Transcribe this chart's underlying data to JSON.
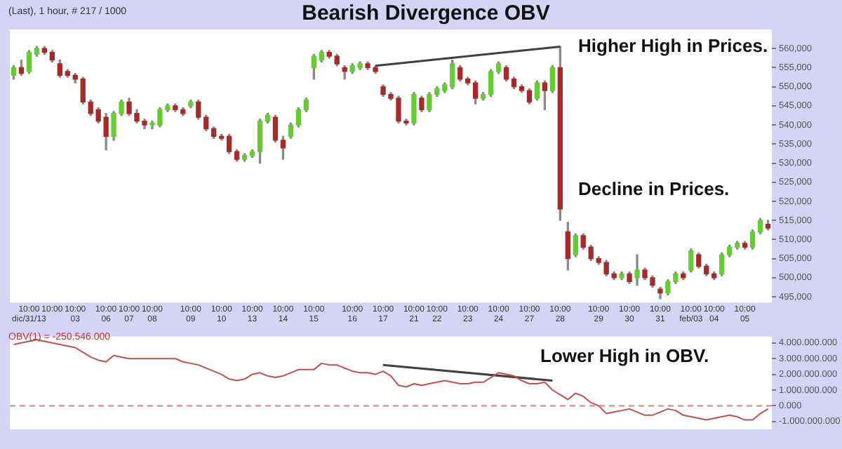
{
  "chart_data": [
    {
      "type": "candlestick",
      "title": "Bearish Divergence OBV",
      "annotations": [
        "(Last), 1 hour, # 217 / 1000",
        "Higher High in Prices.",
        "Decline in Prices."
      ],
      "categories": [
        null,
        null,
        "10:00\ndic/31/13",
        null,
        null,
        "10:00",
        null,
        null,
        "10:00\n03",
        null,
        null,
        null,
        "10:00\n06",
        null,
        null,
        "10:00\n07",
        null,
        null,
        "10:00\n08",
        null,
        null,
        null,
        null,
        "10:00\n09",
        null,
        null,
        null,
        "10:00\n10",
        null,
        null,
        null,
        "10:00\n13",
        null,
        null,
        null,
        "10:00\n14",
        null,
        null,
        null,
        "10:00\n15",
        null,
        null,
        null,
        null,
        "10:00\n16",
        null,
        null,
        null,
        "10:00\n17",
        null,
        null,
        null,
        "10:00\n21",
        null,
        null,
        "10:00\n22",
        null,
        null,
        null,
        "10:00\n23",
        null,
        null,
        null,
        "10:00\n24",
        null,
        null,
        null,
        "10:00\n27",
        null,
        null,
        null,
        "10:00\n28",
        null,
        null,
        null,
        null,
        "10:00\n29",
        null,
        null,
        null,
        "10:00\n30",
        null,
        null,
        null,
        "10:00\n31",
        null,
        null,
        null,
        "10:00\nfeb/03",
        null,
        null,
        "10:00\n04",
        null,
        null,
        null,
        "10:00\n05",
        null,
        null,
        null
      ],
      "ohlc": [
        [
          553000,
          555500,
          552000,
          555000
        ],
        [
          555000,
          557000,
          553000,
          553500
        ],
        [
          554000,
          559500,
          553500,
          559000
        ],
        [
          558500,
          560500,
          558000,
          560000
        ],
        [
          560000,
          560500,
          558500,
          559000
        ],
        [
          559000,
          559500,
          556500,
          557000
        ],
        [
          556000,
          557000,
          552500,
          553000
        ],
        [
          554000,
          554500,
          552500,
          553000
        ],
        [
          553000,
          553500,
          551000,
          552000
        ],
        [
          552000,
          552500,
          545500,
          546000
        ],
        [
          546000,
          546500,
          542500,
          543000
        ],
        [
          544000,
          544500,
          540500,
          541000
        ],
        [
          542000,
          543000,
          533500,
          537000
        ],
        [
          537000,
          543500,
          536000,
          543000
        ],
        [
          543000,
          546500,
          542500,
          546000
        ],
        [
          546000,
          547000,
          542500,
          543000
        ],
        [
          543000,
          544000,
          540500,
          541000
        ],
        [
          541000,
          541500,
          539000,
          540000
        ],
        [
          540000,
          541000,
          539000,
          540500
        ],
        [
          540000,
          544500,
          539500,
          544000
        ],
        [
          544000,
          545500,
          543500,
          545000
        ],
        [
          545000,
          545500,
          543500,
          544000
        ],
        [
          544000,
          544500,
          542500,
          543000
        ],
        [
          545000,
          546500,
          544500,
          546000
        ],
        [
          546000,
          546500,
          541500,
          542000
        ],
        [
          542000,
          542500,
          538500,
          539000
        ],
        [
          539000,
          539500,
          536500,
          537000
        ],
        [
          537000,
          537500,
          536000,
          536500
        ],
        [
          537000,
          537500,
          532500,
          533000
        ],
        [
          533000,
          533500,
          530500,
          531000
        ],
        [
          531000,
          532500,
          530500,
          532000
        ],
        [
          532000,
          533500,
          531500,
          533000
        ],
        [
          533000,
          541500,
          530000,
          541000
        ],
        [
          541000,
          543000,
          540500,
          542500
        ],
        [
          542000,
          542500,
          535500,
          536000
        ],
        [
          536000,
          537000,
          531000,
          534000
        ],
        [
          537000,
          540500,
          536500,
          540000
        ],
        [
          540000,
          544500,
          539500,
          544000
        ],
        [
          544000,
          547000,
          543500,
          546500
        ],
        [
          555000,
          558500,
          552000,
          558000
        ],
        [
          557000,
          559500,
          556500,
          559000
        ],
        [
          559000,
          559500,
          557500,
          558000
        ],
        [
          558000,
          558500,
          555500,
          556000
        ],
        [
          555000,
          555500,
          552000,
          554000
        ],
        [
          554000,
          556000,
          553500,
          555500
        ],
        [
          555000,
          556500,
          554500,
          556000
        ],
        [
          556000,
          556500,
          554500,
          555000
        ],
        [
          555000,
          555500,
          553500,
          554000
        ],
        [
          550000,
          550500,
          547500,
          548000
        ],
        [
          548000,
          548500,
          546500,
          547000
        ],
        [
          547000,
          547500,
          540500,
          541000
        ],
        [
          541000,
          541500,
          540000,
          540500
        ],
        [
          540500,
          548500,
          540000,
          548000
        ],
        [
          547000,
          547500,
          543500,
          544000
        ],
        [
          544000,
          548500,
          543500,
          548000
        ],
        [
          548000,
          550000,
          547500,
          549500
        ],
        [
          549000,
          551000,
          548500,
          550500
        ],
        [
          550000,
          557000,
          549500,
          556000
        ],
        [
          555000,
          555500,
          551500,
          552000
        ],
        [
          552000,
          552500,
          550500,
          551000
        ],
        [
          551000,
          551500,
          545500,
          547000
        ],
        [
          547000,
          548500,
          546500,
          548000
        ],
        [
          548000,
          554500,
          547500,
          554000
        ],
        [
          554000,
          556500,
          553500,
          556000
        ],
        [
          555000,
          555500,
          551500,
          552000
        ],
        [
          552000,
          552500,
          549500,
          550000
        ],
        [
          550000,
          550500,
          548500,
          549000
        ],
        [
          549000,
          549500,
          545500,
          546000
        ],
        [
          547000,
          551500,
          546500,
          551000
        ],
        [
          551000,
          551500,
          544000,
          549000
        ],
        [
          549000,
          555500,
          548500,
          555000
        ],
        [
          555000,
          560500,
          515000,
          518000
        ],
        [
          512000,
          514500,
          502000,
          505000
        ],
        [
          506000,
          511500,
          505500,
          511000
        ],
        [
          511000,
          511500,
          507500,
          508000
        ],
        [
          508000,
          508500,
          504500,
          505000
        ],
        [
          505000,
          505500,
          503500,
          504000
        ],
        [
          504000,
          504500,
          500500,
          501000
        ],
        [
          501000,
          501500,
          499500,
          500000
        ],
        [
          500000,
          501500,
          499500,
          501000
        ],
        [
          501000,
          501500,
          498500,
          499000
        ],
        [
          500000,
          506000,
          498000,
          502000
        ],
        [
          502000,
          502500,
          499500,
          500000
        ],
        [
          500000,
          500500,
          497500,
          498000
        ],
        [
          497000,
          497500,
          494500,
          496000
        ],
        [
          496000,
          499500,
          495500,
          499000
        ],
        [
          499000,
          501500,
          498500,
          501000
        ],
        [
          501000,
          501500,
          499500,
          500000
        ],
        [
          502000,
          507500,
          501500,
          507000
        ],
        [
          506000,
          506500,
          502500,
          503000
        ],
        [
          503000,
          503500,
          500500,
          501000
        ],
        [
          501000,
          501500,
          499500,
          500000
        ],
        [
          501000,
          506500,
          500500,
          506000
        ],
        [
          506000,
          508500,
          505500,
          508000
        ],
        [
          508000,
          509500,
          507500,
          509000
        ],
        [
          509000,
          509500,
          507500,
          508000
        ],
        [
          508000,
          512500,
          507500,
          512000
        ],
        [
          512000,
          515500,
          511500,
          515000
        ],
        [
          514000,
          515000,
          512500,
          513000
        ]
      ],
      "colors": [
        "#66cc33",
        "#a52a2a",
        "#66cc33",
        "#66cc33",
        "#a52a2a",
        "#a52a2a",
        "#a52a2a",
        "#a52a2a",
        "#a52a2a",
        "#a52a2a",
        "#a52a2a",
        "#a52a2a",
        "#a52a2a",
        "#66cc33",
        "#66cc33",
        "#a52a2a",
        "#a52a2a",
        "#a52a2a",
        "#66cc33",
        "#66cc33",
        "#66cc33",
        "#a52a2a",
        "#a52a2a",
        "#66cc33",
        "#a52a2a",
        "#a52a2a",
        "#a52a2a",
        "#a52a2a",
        "#a52a2a",
        "#a52a2a",
        "#66cc33",
        "#66cc33",
        "#66cc33",
        "#66cc33",
        "#a52a2a",
        "#a52a2a",
        "#66cc33",
        "#66cc33",
        "#66cc33",
        "#66cc33",
        "#66cc33",
        "#a52a2a",
        "#a52a2a",
        "#a52a2a",
        "#66cc33",
        "#66cc33",
        "#a52a2a",
        "#a52a2a",
        "#a52a2a",
        "#a52a2a",
        "#a52a2a",
        "#a52a2a",
        "#66cc33",
        "#a52a2a",
        "#66cc33",
        "#66cc33",
        "#66cc33",
        "#66cc33",
        "#a52a2a",
        "#a52a2a",
        "#a52a2a",
        "#66cc33",
        "#66cc33",
        "#66cc33",
        "#a52a2a",
        "#a52a2a",
        "#a52a2a",
        "#a52a2a",
        "#66cc33",
        "#a52a2a",
        "#66cc33",
        "#a52a2a",
        "#a52a2a",
        "#66cc33",
        "#a52a2a",
        "#a52a2a",
        "#a52a2a",
        "#a52a2a",
        "#a52a2a",
        "#66cc33",
        "#a52a2a",
        "#66cc33",
        "#a52a2a",
        "#a52a2a",
        "#a52a2a",
        "#66cc33",
        "#66cc33",
        "#a52a2a",
        "#66cc33",
        "#a52a2a",
        "#a52a2a",
        "#a52a2a",
        "#66cc33",
        "#66cc33",
        "#66cc33",
        "#a52a2a",
        "#66cc33",
        "#66cc33",
        "#a52a2a"
      ],
      "series": [
        {
          "type": "line",
          "color": "#404040",
          "values": [
            null,
            null,
            null,
            null,
            null,
            null,
            null,
            null,
            null,
            null,
            null,
            null,
            null,
            null,
            null,
            null,
            null,
            null,
            null,
            null,
            null,
            null,
            null,
            null,
            null,
            null,
            null,
            null,
            null,
            null,
            null,
            null,
            null,
            null,
            null,
            null,
            null,
            null,
            null,
            null,
            null,
            null,
            null,
            null,
            null,
            null,
            null,
            555500,
            null,
            null,
            null,
            null,
            null,
            null,
            null,
            null,
            null,
            null,
            null,
            null,
            null,
            null,
            null,
            null,
            null,
            null,
            null,
            null,
            null,
            null,
            null,
            560500,
            null,
            null,
            null,
            null,
            null,
            null,
            null,
            null,
            null,
            null,
            null,
            null,
            null,
            null,
            null,
            null,
            null,
            null,
            null,
            null,
            null,
            null,
            null,
            null,
            null,
            null,
            null
          ]
        }
      ],
      "ylim": [
        493500,
        565000
      ],
      "yticks": [
        {
          "value": 495000,
          "label": "495,000"
        },
        {
          "value": 500000,
          "label": "500,000"
        },
        {
          "value": 505000,
          "label": "505,000"
        },
        {
          "value": 510000,
          "label": "510,000"
        },
        {
          "value": 515000,
          "label": "515,000"
        },
        {
          "value": 520000,
          "label": "520,000"
        },
        {
          "value": 525000,
          "label": "525,000"
        },
        {
          "value": 530000,
          "label": "530,000"
        },
        {
          "value": 535000,
          "label": "535,000"
        },
        {
          "value": 540000,
          "label": "540,000"
        },
        {
          "value": 545000,
          "label": "545,000"
        },
        {
          "value": 550000,
          "label": "550,000"
        },
        {
          "value": 555000,
          "label": "555,000"
        },
        {
          "value": 560000,
          "label": "560,000"
        }
      ]
    },
    {
      "type": "line",
      "tick_labels": "y",
      "annotations": [
        "OBV(1) = -250.546.000",
        "Lower High in OBV."
      ],
      "series": [
        {
          "color": "#c0504d",
          "values": [
            3900000000,
            4000000000,
            4100000000,
            4200000000,
            4100000000,
            4000000000,
            3900000000,
            3800000000,
            3700000000,
            3400000000,
            3100000000,
            2900000000,
            2800000000,
            3200000000,
            3100000000,
            3000000000,
            3000000000,
            3000000000,
            3000000000,
            3000000000,
            3000000000,
            3000000000,
            2800000000,
            2700000000,
            2600000000,
            2400000000,
            2200000000,
            2000000000,
            1700000000,
            1600000000,
            1700000000,
            2000000000,
            2100000000,
            1900000000,
            1800000000,
            1900000000,
            2100000000,
            2300000000,
            2300000000,
            2300000000,
            2700000000,
            2600000000,
            2600000000,
            2400000000,
            2200000000,
            2100000000,
            2100000000,
            2000000000,
            2200000000,
            1900000000,
            1300000000,
            1200000000,
            1400000000,
            1300000000,
            1400000000,
            1500000000,
            1600000000,
            1500000000,
            1400000000,
            1400000000,
            1500000000,
            1500000000,
            1800000000,
            2100000000,
            2000000000,
            1900000000,
            1600000000,
            1400000000,
            1400000000,
            1500000000,
            1000000000,
            700000000,
            400000000,
            800000000,
            600000000,
            200000000,
            0,
            -500000000,
            -400000000,
            -300000000,
            -200000000,
            -400000000,
            -600000000,
            -600000000,
            -400000000,
            -200000000,
            -300000000,
            -600000000,
            -700000000,
            -800000000,
            -900000000,
            -800000000,
            -700000000,
            -600000000,
            -700000000,
            -900000000,
            -900000000,
            -500000000,
            -200000000
          ]
        },
        {
          "color": "#404040",
          "values": [
            null,
            null,
            null,
            null,
            null,
            null,
            null,
            null,
            null,
            null,
            null,
            null,
            null,
            null,
            null,
            null,
            null,
            null,
            null,
            null,
            null,
            null,
            null,
            null,
            null,
            null,
            null,
            null,
            null,
            null,
            null,
            null,
            null,
            null,
            null,
            null,
            null,
            null,
            null,
            null,
            null,
            null,
            null,
            null,
            null,
            null,
            null,
            null,
            2600000000,
            null,
            null,
            null,
            null,
            null,
            null,
            null,
            null,
            null,
            null,
            null,
            null,
            null,
            null,
            null,
            null,
            null,
            null,
            null,
            null,
            null,
            1600000000,
            null,
            null,
            null,
            null,
            null,
            null,
            null,
            null,
            null,
            null,
            null,
            null,
            null,
            null,
            null,
            null,
            null,
            null,
            null,
            null,
            null,
            null,
            null,
            null,
            null,
            null,
            null,
            null
          ]
        }
      ],
      "ylim": [
        -1500000000,
        4400000000
      ],
      "yticks": [
        {
          "value": -1000000000,
          "label": "-1.000.000.000"
        },
        {
          "value": 0,
          "label": "0.000"
        },
        {
          "value": 1000000000,
          "label": "1.000.000.000"
        },
        {
          "value": 2000000000,
          "label": "2.000.000.000"
        },
        {
          "value": 3000000000,
          "label": "3.000.000.000"
        },
        {
          "value": 4000000000,
          "label": "4.000.000.000"
        }
      ],
      "ref_lines": [
        {
          "axis": "y",
          "value": 0,
          "color": "#e08080",
          "line_style": "dashed"
        }
      ]
    }
  ]
}
